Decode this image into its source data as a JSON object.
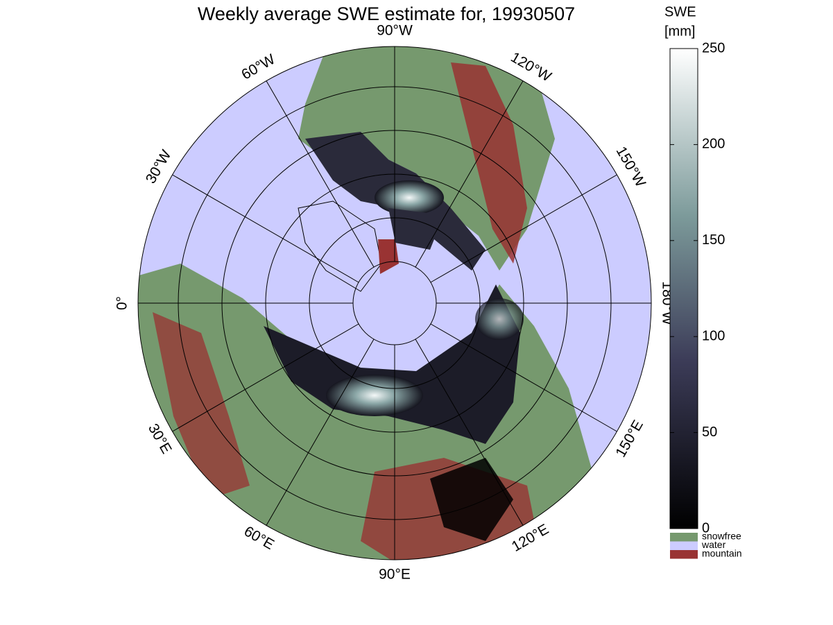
{
  "title": "Weekly average SWE estimate for, 19930507",
  "longitude_labels": [
    "90°W",
    "120°W",
    "150°W",
    "180°W",
    "150°E",
    "120°E",
    "90°E",
    "60°E",
    "30°E",
    "0°",
    "30°W",
    "60°W"
  ],
  "colorbar": {
    "title": [
      "SWE",
      "[mm]"
    ],
    "ylim": [
      0,
      250
    ],
    "yticks": [
      0,
      50,
      100,
      150,
      200,
      250
    ]
  },
  "legend": [
    {
      "name": "snowfree",
      "color": "#76996e"
    },
    {
      "name": "water",
      "color": "#ccccff"
    },
    {
      "name": "mountain",
      "color": "#993333"
    }
  ]
}
